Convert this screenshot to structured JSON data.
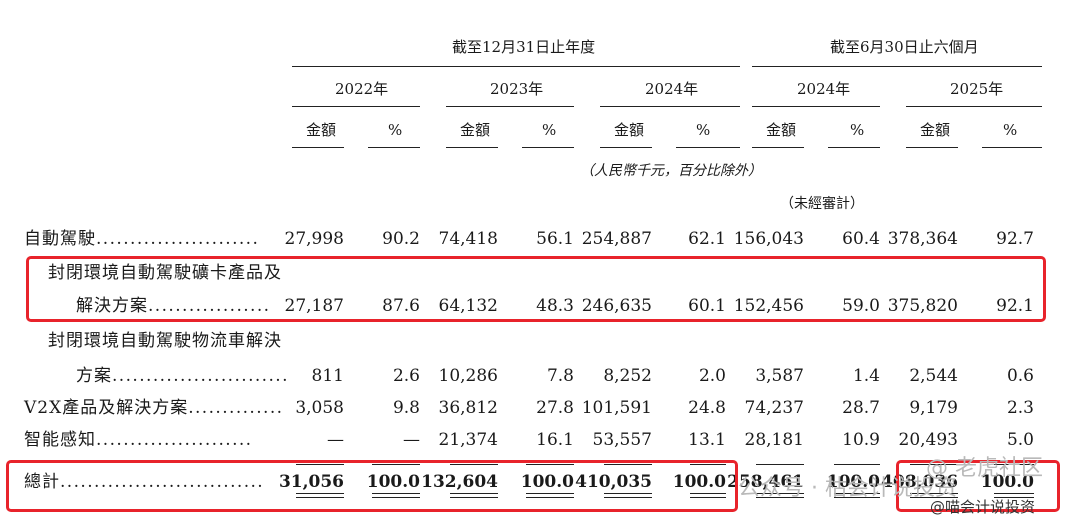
{
  "header": {
    "group1": "截至12月31日止年度",
    "group2": "截至6月30日止六個月",
    "years": [
      "2022年",
      "2023年",
      "2024年",
      "2024年",
      "2025年"
    ],
    "amount_label": "金額",
    "pct_label": "%",
    "currency_note": "（人民幣千元，百分比除外）",
    "unaudited": "（未經審計）"
  },
  "rows": [
    {
      "label": "自動駕駛",
      "dots": "........................",
      "values": [
        "27,998",
        "90.2",
        "74,418",
        "56.1",
        "254,887",
        "62.1",
        "156,043",
        "60.4",
        "378,364",
        "92.7"
      ]
    },
    {
      "label1": "封閉環境自動駕駛礦卡產品及",
      "label2": "解決方案",
      "dots": "..................",
      "values": [
        "27,187",
        "87.6",
        "64,132",
        "48.3",
        "246,635",
        "60.1",
        "152,456",
        "59.0",
        "375,820",
        "92.1"
      ]
    },
    {
      "label1": "封閉環境自動駕駛物流車解決",
      "label2": "方案",
      "dots": "..........................",
      "values": [
        "811",
        "2.6",
        "10,286",
        "7.8",
        "8,252",
        "2.0",
        "3,587",
        "1.4",
        "2,544",
        "0.6"
      ]
    },
    {
      "label": "V2X產品及解決方案",
      "dots": "..............",
      "values": [
        "3,058",
        "9.8",
        "36,812",
        "27.8",
        "101,591",
        "24.8",
        "74,237",
        "28.7",
        "9,179",
        "2.3"
      ]
    },
    {
      "label": "智能感知",
      "dots": ".......................",
      "values": [
        "—",
        "—",
        "21,374",
        "16.1",
        "53,557",
        "13.1",
        "28,181",
        "10.9",
        "20,493",
        "5.0"
      ]
    },
    {
      "label": "總計",
      "dots": "..............................",
      "values": [
        "31,056",
        "100.0",
        "132,604",
        "100.0",
        "410,035",
        "100.0",
        "258,461",
        "100.0",
        "408,036",
        "100.0"
      ]
    }
  ],
  "watermark": {
    "text1": "公众号 · 枯会计说投资",
    "text2": "@ 老虎社区",
    "text3": "@喵会计说投资"
  },
  "colors": {
    "highlight_box": "#e8232b",
    "text": "#1a1a1a",
    "watermark": "#b9b9b9"
  }
}
